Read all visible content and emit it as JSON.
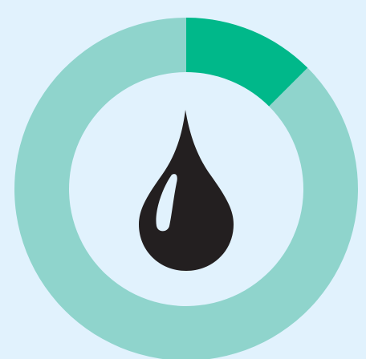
{
  "chart_data": {
    "type": "pie",
    "variant": "donut",
    "title": "",
    "slices": [
      {
        "value": 12.5,
        "color": "#00b88a"
      },
      {
        "value": 87.5,
        "color": "#8fd4cc"
      }
    ],
    "start_angle_deg": 0,
    "direction": "clockwise",
    "center_icon": "oil-drop-icon",
    "grid": false,
    "legend": "none"
  },
  "colors": {
    "background": "#e1f2fd",
    "icon": "#231f20"
  }
}
